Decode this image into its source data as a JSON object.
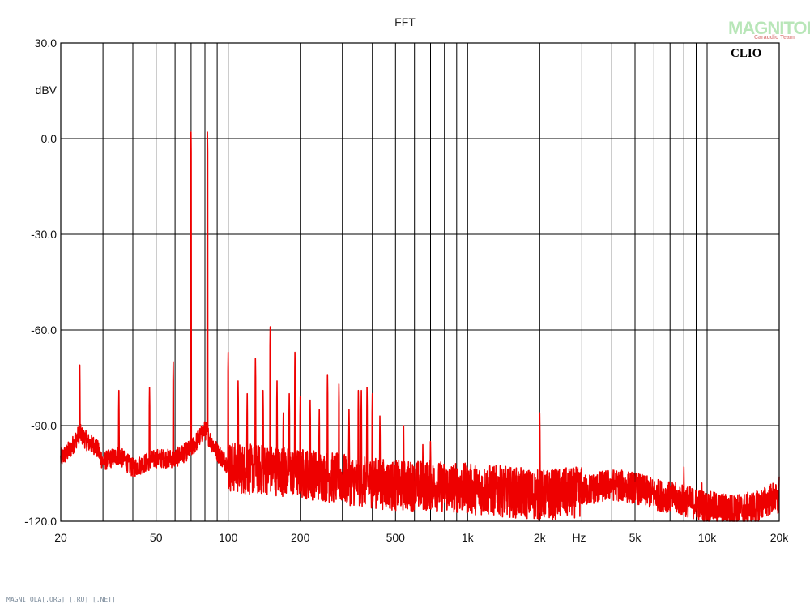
{
  "chart_data": {
    "type": "line",
    "title": "FFT",
    "ylabel": "dBV",
    "xlabel": "Hz",
    "xscale": "log",
    "xlim": [
      20,
      20000
    ],
    "ylim": [
      -120,
      30
    ],
    "grid": true,
    "x_tick_labels": [
      "20",
      "50",
      "100",
      "200",
      "500",
      "1k",
      "2k",
      "5k",
      "10k",
      "20k"
    ],
    "x_tick_values": [
      20,
      50,
      100,
      200,
      500,
      1000,
      2000,
      5000,
      10000,
      20000
    ],
    "y_tick_labels": [
      "30.0",
      "0.0",
      "-30.0",
      "-60.0",
      "-90.0",
      "-120.0"
    ],
    "y_tick_values": [
      30,
      0,
      -30,
      -60,
      -90,
      -120
    ],
    "series": [
      {
        "color": "#ee0000",
        "peaks_x": [
          24,
          35,
          47,
          59,
          70,
          82,
          100,
          110,
          120,
          130,
          140,
          150,
          160,
          170,
          180,
          190,
          200,
          220,
          240,
          260,
          290,
          320,
          350,
          360,
          380,
          400,
          430,
          540,
          650,
          700,
          2000,
          8000,
          9500,
          20000
        ],
        "peaks_y": [
          -71,
          -79,
          -78,
          -70,
          2,
          2,
          -67,
          -76,
          -80,
          -69,
          -79,
          -59,
          -76,
          -86,
          -80,
          -67,
          -81,
          -82,
          -85,
          -74,
          -77,
          -85,
          -79,
          -79,
          -78,
          -80,
          -87,
          -90,
          -96,
          -95,
          -86,
          -103,
          -108,
          -106
        ],
        "baseline_x": [
          20,
          22,
          24,
          26,
          28,
          30,
          35,
          40,
          50,
          60,
          70,
          80,
          90,
          100,
          120,
          150,
          200,
          300,
          500,
          700,
          1000,
          1500,
          2000,
          3000,
          4000,
          5000,
          6000,
          7000,
          8000,
          10000,
          13000,
          16000,
          18000,
          19000,
          20000,
          21000
        ],
        "baseline_y": [
          -100,
          -97,
          -92,
          -95,
          -96,
          -101,
          -99,
          -103,
          -100,
          -100,
          -97,
          -91,
          -98,
          -102,
          -103,
          -103,
          -104,
          -106,
          -108,
          -108,
          -109,
          -110,
          -111,
          -110,
          -108,
          -109,
          -111,
          -112,
          -113,
          -115,
          -116,
          -115,
          -113,
          -112,
          -114,
          -119
        ]
      }
    ]
  },
  "badge": {
    "text": "CLIO"
  },
  "watermark": {
    "main": "MAGNITOLA",
    "sub": "Caraudio Team"
  },
  "footer": {
    "text": "MAGNITOLA[.ORG] [.RU] [.NET]"
  }
}
